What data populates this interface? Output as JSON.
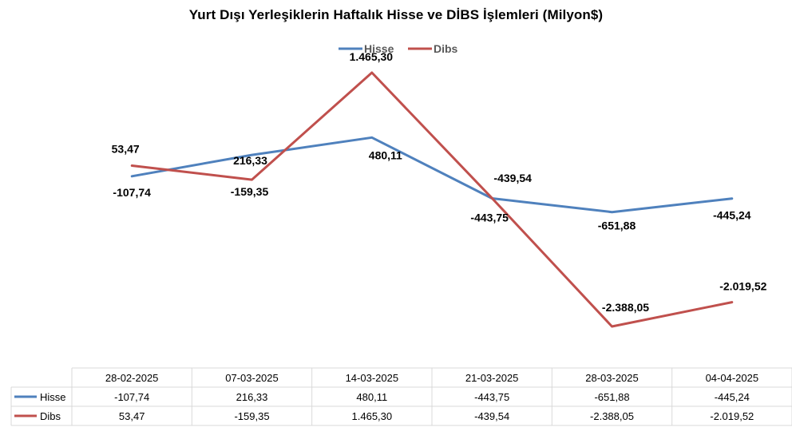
{
  "chart_data": {
    "type": "line",
    "title": "Yurt Dışı Yerleşiklerin Haftalık Hisse ve DİBS İşlemleri (Milyon$)",
    "categories": [
      "28-02-2025",
      "07-03-2025",
      "14-03-2025",
      "21-03-2025",
      "28-03-2025",
      "04-04-2025"
    ],
    "series": [
      {
        "name": "Hisse",
        "color": "#4f81bd",
        "values": [
          -107.74,
          216.33,
          480.11,
          -443.75,
          -651.88,
          -445.24
        ],
        "labels": [
          "-107,74",
          "216,33",
          "480,11",
          "-443,75",
          "-651,88",
          "-445,24"
        ]
      },
      {
        "name": "Dibs",
        "color": "#c0504d",
        "values": [
          53.47,
          -159.35,
          1465.3,
          -439.54,
          -2388.05,
          -2019.52
        ],
        "labels": [
          "53,47",
          "-159,35",
          "1.465,30",
          "-439,54",
          "-2.388,05",
          "-2.019,52"
        ]
      }
    ],
    "legend_position": "top",
    "data_table": true,
    "grid": false
  }
}
